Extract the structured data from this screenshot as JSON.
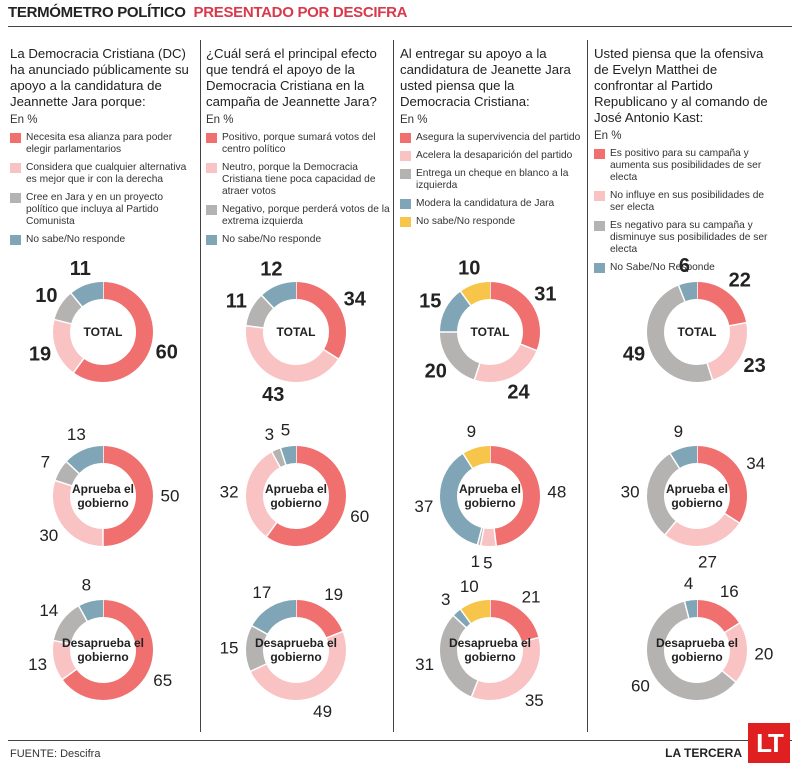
{
  "header": {
    "title": "TERMÓMETRO POLÍTICO",
    "subtitle": "PRESENTADO POR DESCIFRA"
  },
  "colors": {
    "red": "#f07070",
    "pink": "#f9c3c3",
    "gray": "#b5b2b2",
    "blue": "#7fa5b6",
    "yellow": "#f7c54a"
  },
  "footer": {
    "source": "FUENTE: Descifra",
    "brand": "LA TERCERA",
    "logo_text": "LT"
  },
  "chart_data": [
    {
      "type": "pie",
      "question": "La Democracia Cristiana (DC) ha anunciado públicamente su apoyo a la candidatura de Jeannette Jara porque:",
      "unit": "En %",
      "legend": [
        {
          "label": "Necesita esa alianza para poder elegir parlamentarios",
          "color": "red"
        },
        {
          "label": "Considera que cualquier alternativa es mejor que ir con la derecha",
          "color": "pink"
        },
        {
          "label": "Cree en Jara y en un proyecto político que incluya al Partido Comunista",
          "color": "gray"
        },
        {
          "label": "No sabe/No responde",
          "color": "blue"
        }
      ],
      "donuts": [
        {
          "label": "TOTAL",
          "values": [
            60,
            19,
            10,
            11
          ]
        },
        {
          "label": "Aprueba el gobierno",
          "values": [
            50,
            30,
            7,
            13
          ]
        },
        {
          "label": "Desaprueba el gobierno",
          "values": [
            65,
            13,
            14,
            8
          ]
        }
      ]
    },
    {
      "type": "pie",
      "question": "¿Cuál será el principal efecto que tendrá el apoyo de la Democracia Cristiana en la campaña de Jeannette Jara?",
      "unit": "En %",
      "legend": [
        {
          "label": "Positivo, porque sumará votos del centro político",
          "color": "red"
        },
        {
          "label": "Neutro, porque la Democracia Cristiana tiene poca capacidad de atraer votos",
          "color": "pink"
        },
        {
          "label": "Negativo, porque perderá votos de la extrema izquierda",
          "color": "gray"
        },
        {
          "label": "No sabe/No responde",
          "color": "blue"
        }
      ],
      "donuts": [
        {
          "label": "TOTAL",
          "values": [
            34,
            43,
            11,
            12
          ]
        },
        {
          "label": "Aprueba el gobierno",
          "values": [
            60,
            32,
            3,
            5
          ]
        },
        {
          "label": "Desaprueba el gobierno",
          "values": [
            19,
            49,
            15,
            17
          ]
        }
      ]
    },
    {
      "type": "pie",
      "question": "Al entregar su apoyo a la candidatura de Jeanette Jara usted piensa que la Democracia Cristiana:",
      "unit": "En %",
      "legend": [
        {
          "label": "Asegura la supervivencia del partido",
          "color": "red"
        },
        {
          "label": "Acelera la desaparición del partido",
          "color": "pink"
        },
        {
          "label": "Entrega un cheque en blanco a la izquierda",
          "color": "gray"
        },
        {
          "label": "Modera la candidatura de Jara",
          "color": "blue"
        },
        {
          "label": "No sabe/No responde",
          "color": "yellow"
        }
      ],
      "donuts": [
        {
          "label": "TOTAL",
          "values": [
            31,
            24,
            20,
            15,
            10
          ]
        },
        {
          "label": "Aprueba el gobierno",
          "values": [
            48,
            5,
            1,
            37,
            9
          ]
        },
        {
          "label": "Desaprueba el gobierno",
          "values": [
            21,
            35,
            31,
            3,
            10
          ]
        }
      ]
    },
    {
      "type": "pie",
      "question": "Usted piensa que la ofensiva de Evelyn Matthei de confrontar al Partido Republicano y al comando de José Antonio Kast:",
      "unit": "En %",
      "legend": [
        {
          "label": "Es positivo para su campaña y aumenta sus posibilidades de ser electa",
          "color": "red"
        },
        {
          "label": "No influye en sus posibilidades de ser electa",
          "color": "pink"
        },
        {
          "label": "Es negativo para su campaña y disminuye sus posibilidades de ser electa",
          "color": "gray"
        },
        {
          "label": "No Sabe/No Responde",
          "color": "blue"
        }
      ],
      "donuts": [
        {
          "label": "TOTAL",
          "values": [
            22,
            23,
            49,
            6
          ]
        },
        {
          "label": "Aprueba el gobierno",
          "values": [
            34,
            27,
            30,
            9
          ]
        },
        {
          "label": "Desaprueba el gobierno",
          "values": [
            16,
            20,
            60,
            4
          ]
        }
      ]
    }
  ]
}
